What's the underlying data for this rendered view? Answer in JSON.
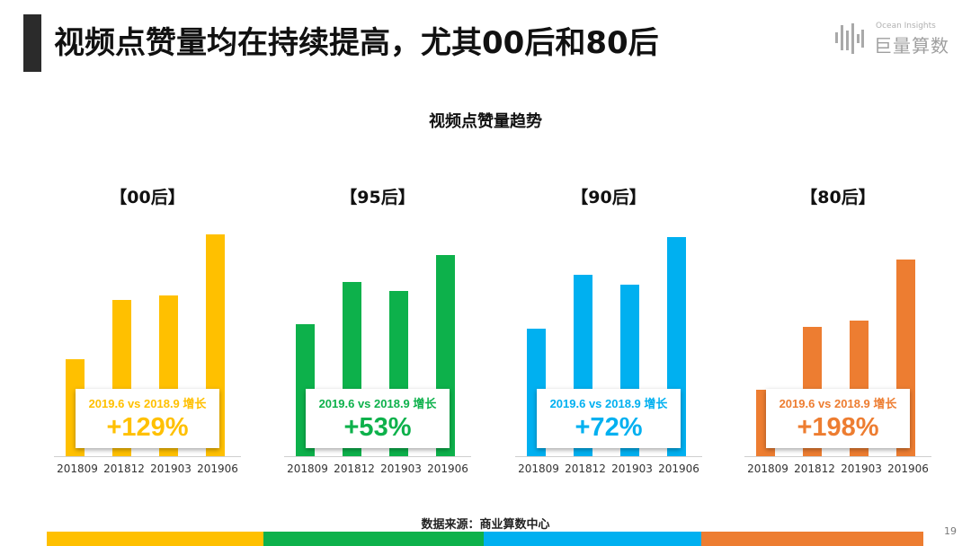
{
  "header": {
    "title": "视频点赞量均在持续提高，尤其00后和80后"
  },
  "logo": {
    "small_text": "Ocean Insights",
    "big_text": "巨量算数",
    "icon": "ocean-insights-bars-icon"
  },
  "footer": {
    "source": "数据来源：商业算数中心",
    "page_number": "19"
  },
  "colors": {
    "yellow": "#FFC000",
    "green": "#0DB14B",
    "blue": "#00B0F0",
    "orange": "#ED7D31"
  },
  "chart_data": {
    "type": "bar",
    "title": "视频点赞量趋势",
    "categories": [
      "201809",
      "201812",
      "201903",
      "201906"
    ],
    "yaxis": "none",
    "grid": false,
    "series": [
      {
        "name": "【00后】",
        "color": "#FFC000",
        "values": [
          108,
          174,
          179,
          247
        ],
        "growth_label": "2019.6 vs 2018.9 增长",
        "growth_value": "+129%"
      },
      {
        "name": "【95后】",
        "color": "#0DB14B",
        "values": [
          147,
          194,
          184,
          224
        ],
        "growth_label": "2019.6 vs 2018.9 增长",
        "growth_value": "+53%"
      },
      {
        "name": "【90后】",
        "color": "#00B0F0",
        "values": [
          142,
          202,
          191,
          244
        ],
        "growth_label": "2019.6 vs 2018.9 增长",
        "growth_value": "+72%"
      },
      {
        "name": "【80后】",
        "color": "#ED7D31",
        "values": [
          74,
          144,
          151,
          219
        ],
        "growth_label": "2019.6 vs 2018.9 增长",
        "growth_value": "+198%"
      }
    ]
  }
}
